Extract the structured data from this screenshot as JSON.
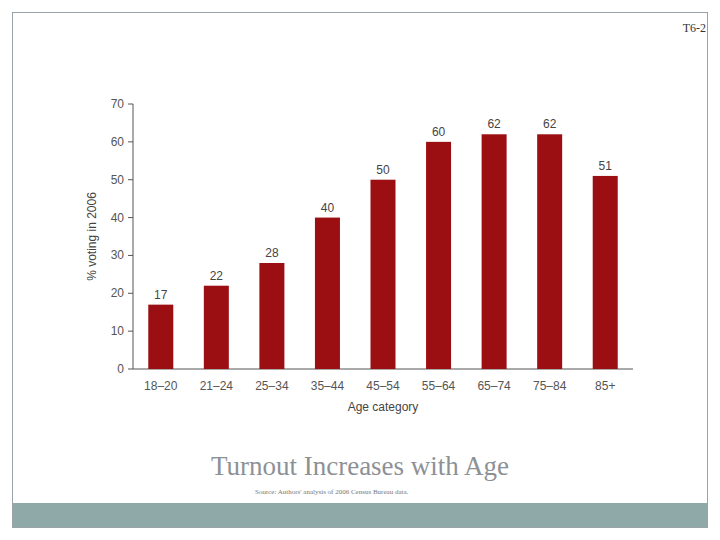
{
  "slide": {
    "label": "T6-2"
  },
  "chart_data": {
    "type": "bar",
    "title": "Turnout Increases with Age",
    "source": "Source: Authors' analysis of 2006 Census Bureau data.",
    "x_label": "Age category",
    "y_label": "% voting in 2006",
    "categories": [
      "18–20",
      "21–24",
      "25–34",
      "35–44",
      "45–54",
      "55–64",
      "65–74",
      "75–84",
      "85+"
    ],
    "values": [
      17,
      22,
      28,
      40,
      50,
      60,
      62,
      62,
      51
    ],
    "color": "#9b0e12",
    "ylim": [
      0,
      70
    ],
    "yticks": [
      0,
      10,
      20,
      30,
      40,
      50,
      60,
      70
    ],
    "grid": false,
    "data_labels": true
  }
}
